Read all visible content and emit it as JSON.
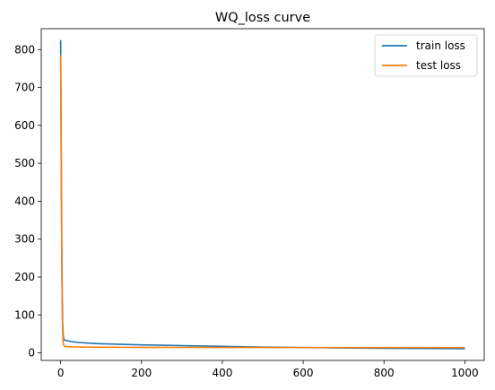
{
  "chart_data": {
    "type": "line",
    "title": "WQ_loss curve",
    "xlabel": "",
    "ylabel": "",
    "xlim": [
      -48,
      1048
    ],
    "ylim": [
      -20,
      855
    ],
    "xticks": [
      0,
      200,
      400,
      600,
      800,
      1000
    ],
    "yticks": [
      0,
      100,
      200,
      300,
      400,
      500,
      600,
      700,
      800
    ],
    "grid": false,
    "legend_position": "top-right",
    "series": [
      {
        "name": "train loss",
        "color": "#1f77b4",
        "x": [
          0,
          1,
          2,
          3,
          4,
          5,
          6,
          7,
          8,
          10,
          12,
          14,
          16,
          20,
          25,
          30,
          40,
          50,
          75,
          100,
          150,
          200,
          250,
          300,
          350,
          400,
          450,
          500,
          600,
          700,
          800,
          900,
          1000
        ],
        "y": [
          825,
          620,
          420,
          250,
          140,
          80,
          52,
          40,
          36,
          34,
          33,
          32.5,
          32,
          31,
          30,
          29,
          28,
          27,
          25,
          24,
          22.5,
          21,
          20,
          19,
          18,
          17,
          16,
          15,
          14,
          13,
          12,
          11.5,
          11
        ]
      },
      {
        "name": "test loss",
        "color": "#ff7f0e",
        "x": [
          0,
          1,
          2,
          3,
          4,
          5,
          6,
          7,
          8,
          10,
          12,
          14,
          16,
          20,
          25,
          30,
          40,
          50,
          75,
          100,
          150,
          200,
          250,
          300,
          350,
          400,
          450,
          500,
          600,
          700,
          800,
          900,
          1000
        ],
        "y": [
          785,
          580,
          390,
          220,
          110,
          55,
          30,
          22,
          19,
          17.5,
          17,
          16.8,
          16.5,
          16.3,
          16,
          15.8,
          15.5,
          15.3,
          15,
          14.8,
          14.6,
          14.5,
          14.4,
          14.3,
          14.2,
          14.2,
          14.1,
          14.1,
          14,
          14,
          14,
          14,
          14
        ]
      }
    ]
  }
}
